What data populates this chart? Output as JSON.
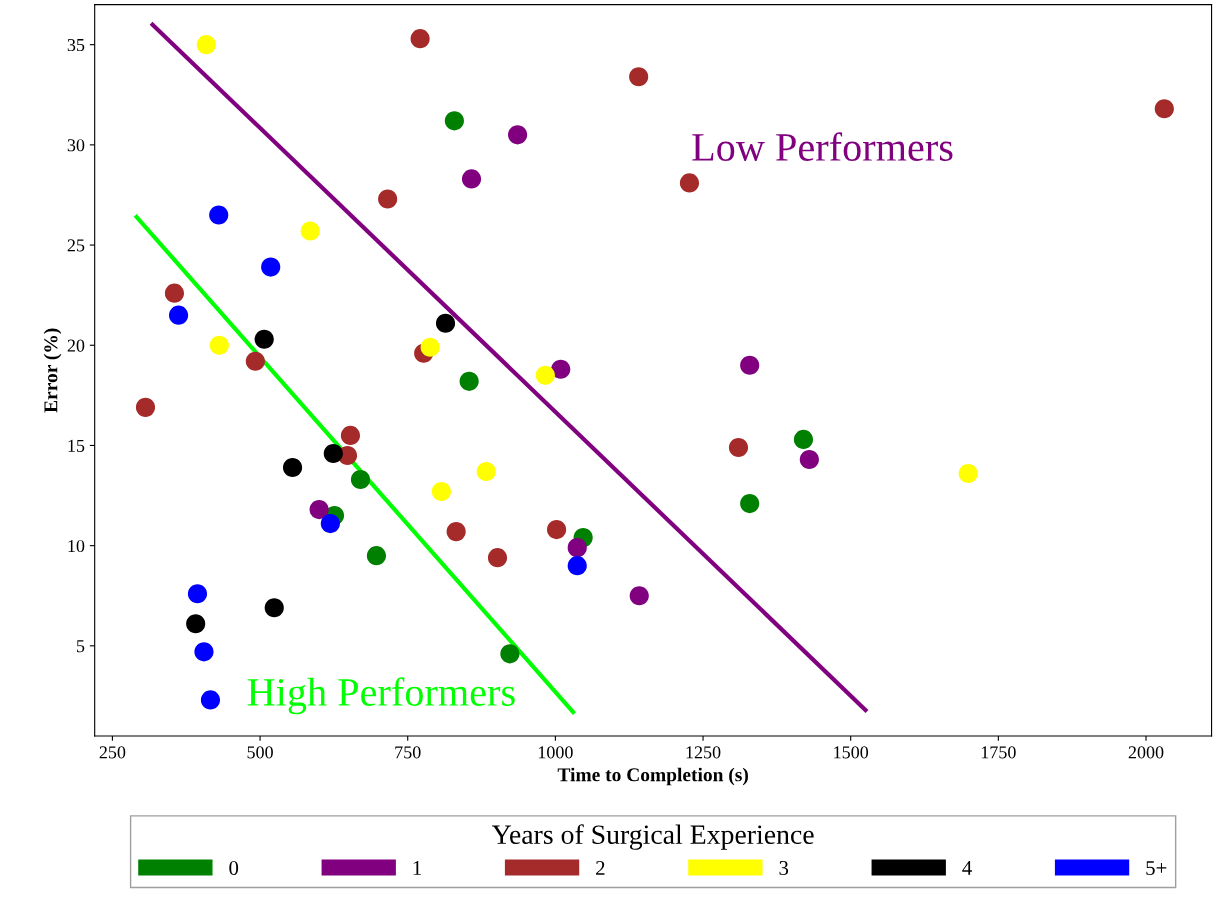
{
  "chart_data": {
    "type": "scatter",
    "xlabel": "Time to Completion (s)",
    "ylabel": "Error (%)",
    "legend_title": "Years of Surgical Experience",
    "legend": "bottom",
    "marker": "circle",
    "grid": false,
    "xlim": [
      220,
      2111
    ],
    "ylim": [
      0.5,
      37.0
    ],
    "xticks": [
      250,
      500,
      750,
      1000,
      1250,
      1500,
      1750,
      2000
    ],
    "yticks": [
      5,
      10,
      15,
      20,
      25,
      30,
      35
    ],
    "series": [
      {
        "name": "0",
        "color": "#008000",
        "x": [
          829,
          854,
          670,
          626,
          697,
          1047,
          923,
          1420,
          1329
        ],
        "values": [
          31.2,
          18.2,
          13.3,
          11.5,
          9.5,
          10.4,
          4.6,
          15.3,
          12.1
        ]
      },
      {
        "name": "1",
        "color": "#800080",
        "x": [
          936,
          858,
          1009,
          1329,
          1430,
          600,
          1037,
          1142
        ],
        "values": [
          30.5,
          28.3,
          18.8,
          19.0,
          14.3,
          11.8,
          9.9,
          7.5
        ]
      },
      {
        "name": "2",
        "color": "#a52a2a",
        "x": [
          771,
          1141,
          2031,
          1227,
          716,
          355,
          492,
          306,
          777,
          653,
          648,
          832,
          902,
          1002,
          1310
        ],
        "values": [
          35.3,
          33.4,
          31.8,
          28.1,
          27.3,
          22.6,
          19.2,
          16.9,
          19.6,
          15.5,
          14.5,
          10.7,
          9.4,
          10.8,
          14.9
        ]
      },
      {
        "name": "3",
        "color": "#ffff00",
        "x": [
          409,
          431,
          585,
          788,
          983,
          807,
          883,
          1699
        ],
        "values": [
          35.0,
          20.0,
          25.7,
          19.9,
          18.5,
          12.7,
          13.7,
          13.6
        ]
      },
      {
        "name": "4",
        "color": "#000000",
        "x": [
          507,
          814,
          555,
          624,
          524,
          391
        ],
        "values": [
          20.3,
          21.1,
          13.9,
          14.6,
          6.9,
          6.1
        ]
      },
      {
        "name": "5+",
        "color": "#0000ff",
        "x": [
          430,
          518,
          362,
          619,
          1037,
          394,
          405,
          416
        ],
        "values": [
          26.5,
          23.9,
          21.5,
          11.1,
          9.0,
          7.6,
          4.7,
          2.3
        ]
      },
      {
        "type": "line",
        "marker": "none",
        "color": "#800080",
        "x": [
          318,
          1525
        ],
        "values": [
          36.0,
          1.8
        ]
      },
      {
        "type": "line",
        "marker": "none",
        "color": "#00ff00",
        "x": [
          291,
          1030
        ],
        "values": [
          26.4,
          1.7
        ]
      }
    ],
    "annotations": [
      "Low Performers",
      "High Performers"
    ]
  }
}
